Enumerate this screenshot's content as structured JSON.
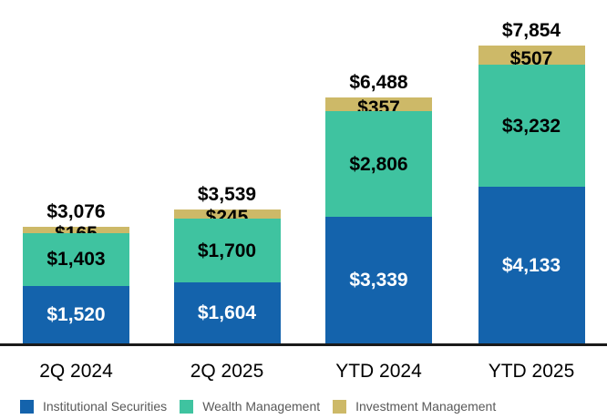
{
  "chart_data": {
    "type": "stacked-bar",
    "title": "",
    "value_prefix": "$",
    "categories": [
      "2Q 2024",
      "2Q 2025",
      "YTD 2024",
      "YTD 2025"
    ],
    "series": [
      {
        "name": "Institutional Securities",
        "color": "#1463AC",
        "label_color": "#FFFFFF",
        "values": [
          1520,
          1604,
          3339,
          4133
        ]
      },
      {
        "name": "Wealth Management",
        "color": "#3FC3A0",
        "label_color": "#000000",
        "values": [
          1403,
          1700,
          2806,
          3232
        ]
      },
      {
        "name": "Investment Management",
        "color": "#CDB968",
        "label_color": "#000000",
        "values": [
          165,
          245,
          357,
          507
        ]
      }
    ],
    "totals": [
      3076,
      3539,
      6488,
      7854
    ],
    "total_labels": [
      "$3,076",
      "$3,539",
      "$6,488",
      "$7,854"
    ],
    "segment_labels": {
      "Institutional Securities": [
        "$1,520",
        "$1,604",
        "$3,339",
        "$4,133"
      ],
      "Wealth Management": [
        "$1,403",
        "$1,700",
        "$2,806",
        "$3,232"
      ],
      "Investment Management": [
        "$165",
        "$245",
        "$357",
        "$507"
      ]
    },
    "legend_position": "bottom",
    "legend_entries": [
      "Institutional Securities",
      "Wealth Management",
      "Investment Management"
    ],
    "colors": {
      "institutional_securities": "#1463AC",
      "wealth_management": "#3FC3A0",
      "investment_management": "#CDB968",
      "axis_line": "#1A1A1A",
      "legend_text": "#595959",
      "background": "#FFFFFF"
    },
    "grid": false,
    "y_axis_visible": false
  }
}
